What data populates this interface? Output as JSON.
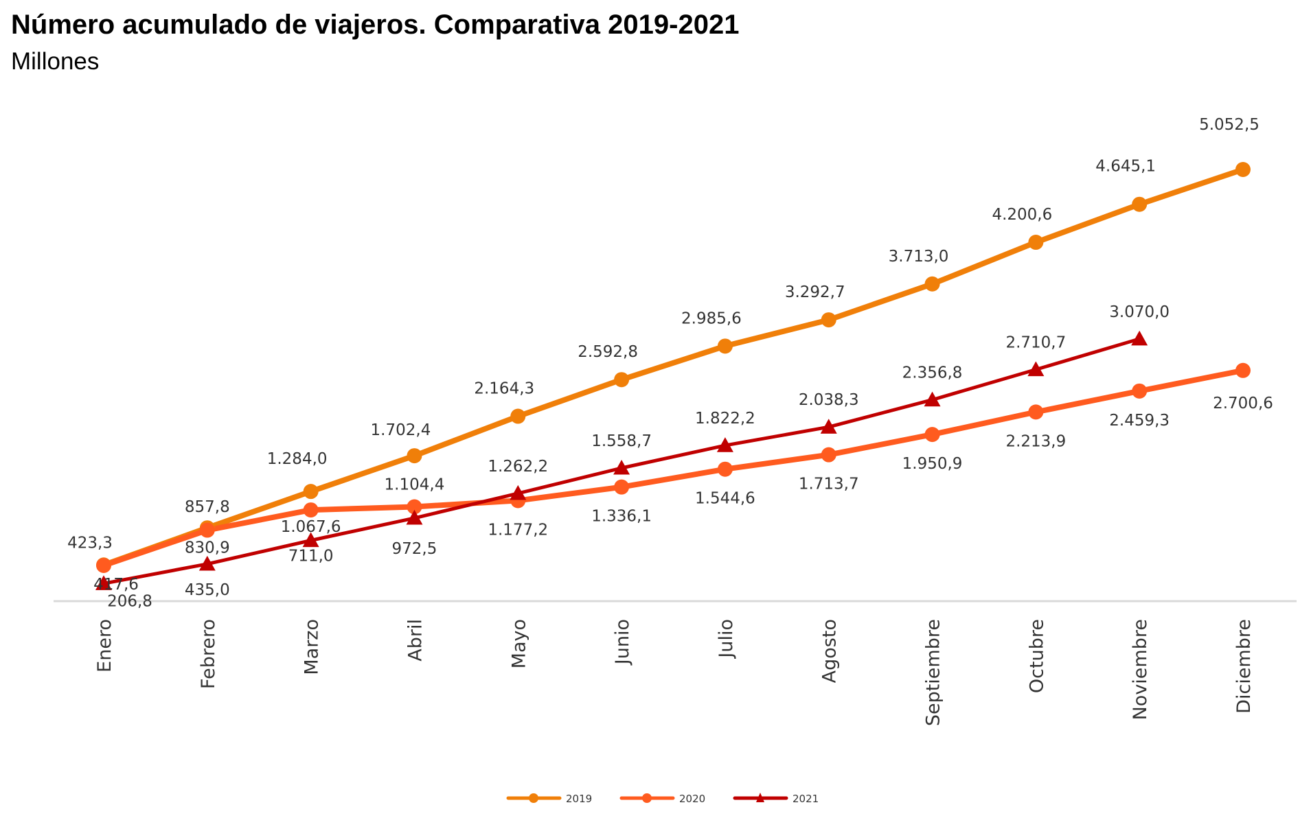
{
  "chart_data": {
    "type": "line",
    "title": "Número acumulado de viajeros. Comparativa 2019-2021",
    "subtitle": "Millones",
    "xlabel": "",
    "ylabel": "",
    "ylim": [
      0,
      5052.5
    ],
    "grid": false,
    "legend": "bottom-center",
    "categories": [
      "Enero",
      "Febrero",
      "Marzo",
      "Abril",
      "Mayo",
      "Junio",
      "Julio",
      "Agosto",
      "Septiembre",
      "Octubre",
      "Noviembre",
      "Diciembre"
    ],
    "series": [
      {
        "name": "2019",
        "color": "#F07F09",
        "marker": "circle",
        "values": [
          423.3,
          857.8,
          1284.0,
          1702.4,
          2164.3,
          2592.8,
          2985.6,
          3292.7,
          3713.0,
          4200.6,
          4645.1,
          5052.5
        ],
        "labels": [
          "423,3",
          "857,8",
          "1.284,0",
          "1.702,4",
          "2.164,3",
          "2.592,8",
          "2.985,6",
          "3.292,7",
          "3.713,0",
          "4.200,6",
          "4.645,1",
          "5.052,5"
        ],
        "label_position": "above"
      },
      {
        "name": "2020",
        "color": "#FF5B1F",
        "marker": "circle",
        "values": [
          417.6,
          830.9,
          1067.6,
          1104.4,
          1177.2,
          1336.1,
          1544.6,
          1713.7,
          1950.9,
          2213.9,
          2459.3,
          2700.6
        ],
        "labels": [
          "417,6",
          "830,9",
          "1.067,6",
          "1.104,4",
          "1.177,2",
          "1.336,1",
          "1.544,6",
          "1.713,7",
          "1.950,9",
          "2.213,9",
          "2.459,3",
          "2.700,6"
        ],
        "label_position": "below"
      },
      {
        "name": "2021",
        "color": "#C00000",
        "marker": "triangle",
        "values": [
          206.8,
          435.0,
          711.0,
          972.5,
          1262.2,
          1558.7,
          1822.2,
          2038.3,
          2356.8,
          2710.7,
          3070.0,
          null
        ],
        "labels": [
          "206,8",
          "435,0",
          "711,0",
          "972,5",
          "1.262,2",
          "1.558,7",
          "1.822,2",
          "2.038,3",
          "2.356,8",
          "2.710,7",
          "3.070,0",
          null
        ],
        "label_position": "mixed"
      }
    ]
  }
}
